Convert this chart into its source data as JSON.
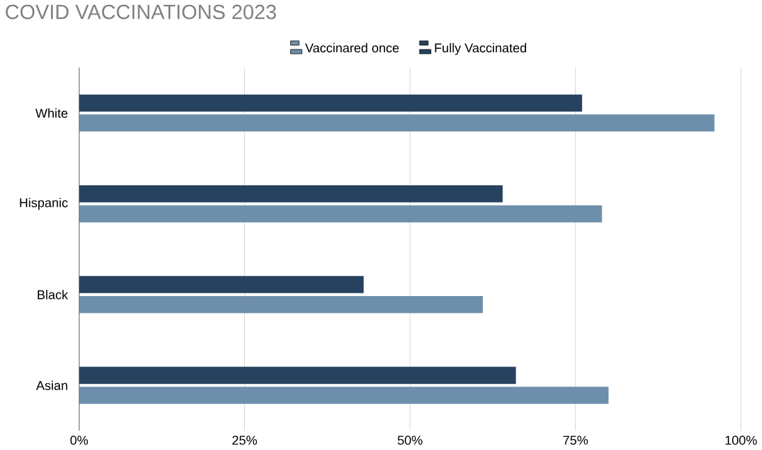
{
  "chart_data": {
    "type": "bar",
    "orientation": "horizontal",
    "title": "COVID VACCINATIONS 2023",
    "categories": [
      "White",
      "Hispanic",
      "Black",
      "Asian"
    ],
    "series": [
      {
        "name": "Vaccinared once",
        "color": "#6d8fac",
        "values": [
          96,
          79,
          61,
          80
        ]
      },
      {
        "name": "Fully Vaccinated",
        "color": "#27425f",
        "values": [
          76,
          64,
          43,
          66
        ]
      }
    ],
    "xlim": [
      0,
      100
    ],
    "xticks": [
      {
        "value": 0,
        "label": "0%"
      },
      {
        "value": 25,
        "label": "25%"
      },
      {
        "value": 50,
        "label": "50%"
      },
      {
        "value": 75,
        "label": "75%"
      },
      {
        "value": 100,
        "label": "100%"
      }
    ],
    "grid": "x",
    "legend": "top"
  }
}
